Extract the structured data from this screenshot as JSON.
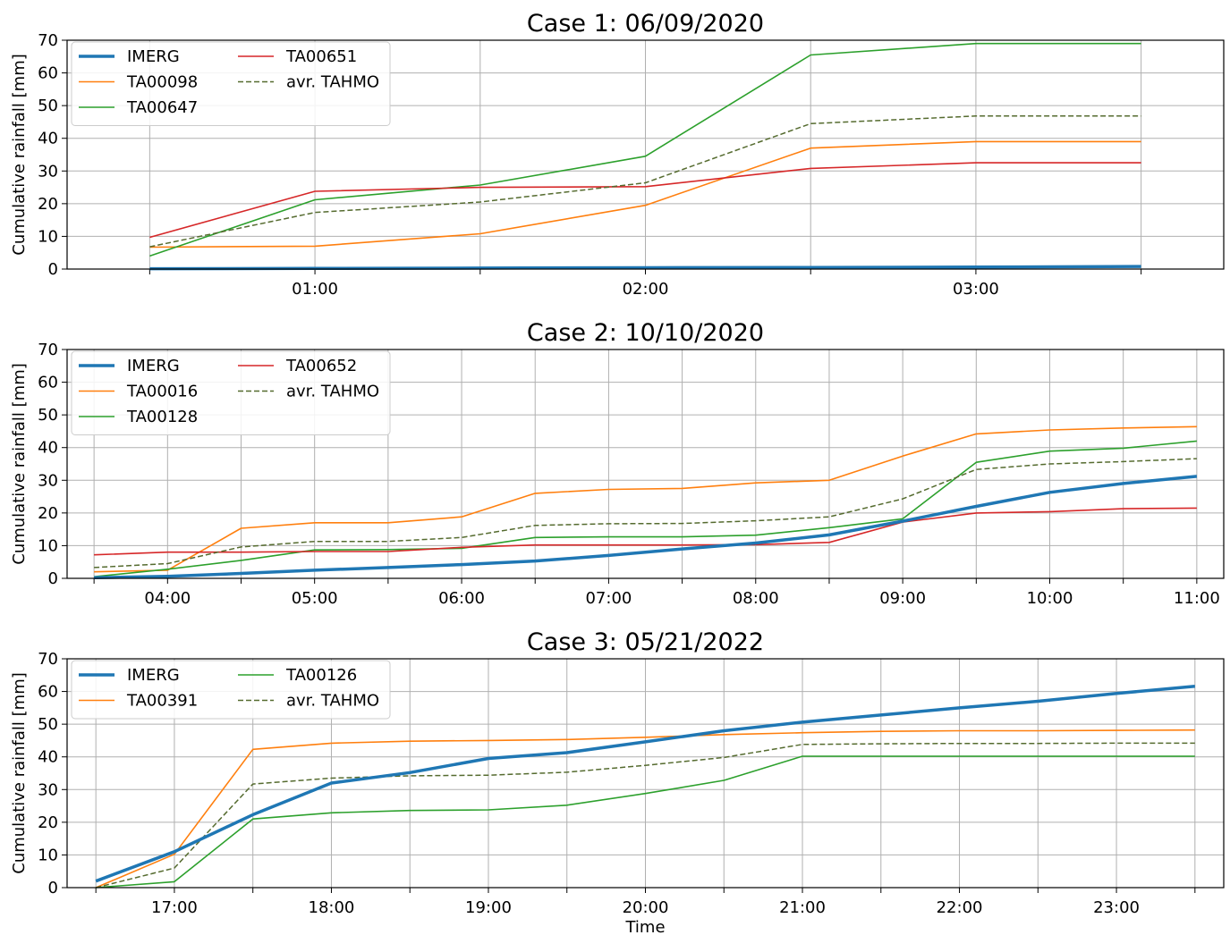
{
  "colors": {
    "IMERG": "#1f77b4",
    "orange": "#ff7f0e",
    "green": "#2ca02c",
    "red": "#d62728",
    "avg": "#556b2f",
    "grid": "#b0b0b0"
  },
  "chart_data": [
    {
      "type": "line",
      "title": "Case 1: 06/09/2020",
      "ylabel": "Cumulative rainfall [mm]",
      "xlabel": "",
      "ylim": [
        0,
        70
      ],
      "yticks": [
        0,
        10,
        20,
        30,
        40,
        50,
        60,
        70
      ],
      "x_time": [
        "00:30",
        "01:00",
        "01:30",
        "02:00",
        "02:30",
        "03:00",
        "03:30"
      ],
      "xlim": [
        "00:15",
        "03:45"
      ],
      "xtick_labels": [
        "01:00",
        "02:00",
        "03:00"
      ],
      "grid": true,
      "legend": "top-left",
      "series": [
        {
          "name": "IMERG",
          "style": "thick",
          "color": "IMERG",
          "values": [
            0.1,
            0.2,
            0.3,
            0.4,
            0.5,
            0.6,
            0.8
          ]
        },
        {
          "name": "TA00098",
          "style": "solid",
          "color": "orange",
          "values": [
            6.7,
            7.0,
            10.8,
            19.5,
            37.0,
            39.0,
            39.0
          ]
        },
        {
          "name": "TA00647",
          "style": "solid",
          "color": "green",
          "values": [
            4.0,
            21.2,
            25.7,
            34.5,
            65.5,
            69.0,
            69.0
          ]
        },
        {
          "name": "TA00651",
          "style": "solid",
          "color": "red",
          "values": [
            9.7,
            23.8,
            25.0,
            25.2,
            30.8,
            32.5,
            32.5
          ]
        },
        {
          "name": "avr. TAHMO",
          "style": "dashed",
          "color": "avg",
          "values": [
            6.8,
            17.3,
            20.5,
            26.4,
            44.5,
            46.8,
            46.8
          ]
        }
      ]
    },
    {
      "type": "line",
      "title": "Case 2: 10/10/2020",
      "ylabel": "Cumulative rainfall [mm]",
      "xlabel": "",
      "ylim": [
        0,
        70
      ],
      "yticks": [
        0,
        10,
        20,
        30,
        40,
        50,
        60,
        70
      ],
      "x_time": [
        "03:30",
        "04:00",
        "04:30",
        "05:00",
        "05:30",
        "06:00",
        "06:30",
        "07:00",
        "07:30",
        "08:00",
        "08:30",
        "09:00",
        "09:30",
        "10:00",
        "10:30",
        "11:00"
      ],
      "xlim": [
        "03:19",
        "11:11"
      ],
      "xtick_labels": [
        "04:00",
        "05:00",
        "06:00",
        "07:00",
        "08:00",
        "09:00",
        "10:00",
        "11:00"
      ],
      "grid": true,
      "legend": "top-left",
      "series": [
        {
          "name": "IMERG",
          "style": "thick",
          "color": "IMERG",
          "values": [
            0.2,
            0.6,
            1.5,
            2.5,
            3.3,
            4.2,
            5.3,
            7.0,
            9.0,
            10.8,
            13.3,
            17.5,
            22.0,
            26.3,
            29.0,
            31.2
          ]
        },
        {
          "name": "TA00016",
          "style": "solid",
          "color": "orange",
          "values": [
            2.0,
            2.5,
            15.3,
            17.0,
            17.0,
            18.8,
            26.0,
            27.2,
            27.5,
            29.2,
            30.0,
            37.4,
            44.2,
            45.4,
            46.0,
            46.4
          ]
        },
        {
          "name": "TA00128",
          "style": "solid",
          "color": "green",
          "values": [
            0.5,
            2.8,
            5.5,
            8.7,
            8.8,
            9.2,
            12.5,
            12.7,
            12.7,
            13.2,
            15.5,
            18.2,
            35.5,
            38.9,
            39.8,
            42.0
          ]
        },
        {
          "name": "TA00652",
          "style": "solid",
          "color": "red",
          "values": [
            7.2,
            8.0,
            8.0,
            8.2,
            8.2,
            9.5,
            10.2,
            10.2,
            10.2,
            10.3,
            11.0,
            17.2,
            20.0,
            20.4,
            21.3,
            21.5
          ]
        },
        {
          "name": "avr. TAHMO",
          "style": "dashed",
          "color": "avg",
          "values": [
            3.3,
            4.5,
            9.6,
            11.3,
            11.3,
            12.5,
            16.2,
            16.7,
            16.8,
            17.6,
            18.8,
            24.3,
            33.3,
            35.0,
            35.7,
            36.6
          ]
        }
      ]
    },
    {
      "type": "line",
      "title": "Case 3: 05/21/2022",
      "ylabel": "Cumulative rainfall [mm]",
      "xlabel": "Time",
      "ylim": [
        0,
        70
      ],
      "yticks": [
        0,
        10,
        20,
        30,
        40,
        50,
        60,
        70
      ],
      "x_time": [
        "16:30",
        "17:00",
        "17:30",
        "18:00",
        "18:30",
        "19:00",
        "19:30",
        "20:00",
        "20:30",
        "21:00",
        "21:30",
        "22:00",
        "22:30",
        "23:00",
        "23:30"
      ],
      "xlim": [
        "16:19",
        "23:41"
      ],
      "xtick_labels": [
        "17:00",
        "18:00",
        "19:00",
        "20:00",
        "21:00",
        "22:00",
        "23:00"
      ],
      "grid": true,
      "legend": "top-left",
      "series": [
        {
          "name": "IMERG",
          "style": "thick",
          "color": "IMERG",
          "values": [
            2.0,
            11.0,
            22.3,
            32.0,
            35.2,
            39.5,
            41.3,
            44.6,
            48.0,
            50.6,
            52.8,
            55.0,
            57.0,
            59.4,
            61.6
          ]
        },
        {
          "name": "TA00391",
          "style": "solid",
          "color": "orange",
          "values": [
            0.0,
            10.2,
            42.3,
            44.2,
            44.8,
            45.0,
            45.3,
            46.0,
            46.8,
            47.4,
            47.8,
            48.0,
            48.0,
            48.1,
            48.2
          ]
        },
        {
          "name": "TA00126",
          "style": "solid",
          "color": "green",
          "values": [
            0.0,
            1.8,
            21.0,
            22.9,
            23.6,
            23.8,
            25.2,
            28.8,
            32.8,
            40.2,
            40.2,
            40.2,
            40.2,
            40.2,
            40.2
          ]
        },
        {
          "name": "avr. TAHMO",
          "style": "dashed",
          "color": "avg",
          "values": [
            0.0,
            6.0,
            31.7,
            33.5,
            34.2,
            34.4,
            35.3,
            37.4,
            39.8,
            43.8,
            44.0,
            44.1,
            44.1,
            44.2,
            44.2
          ]
        }
      ]
    }
  ]
}
